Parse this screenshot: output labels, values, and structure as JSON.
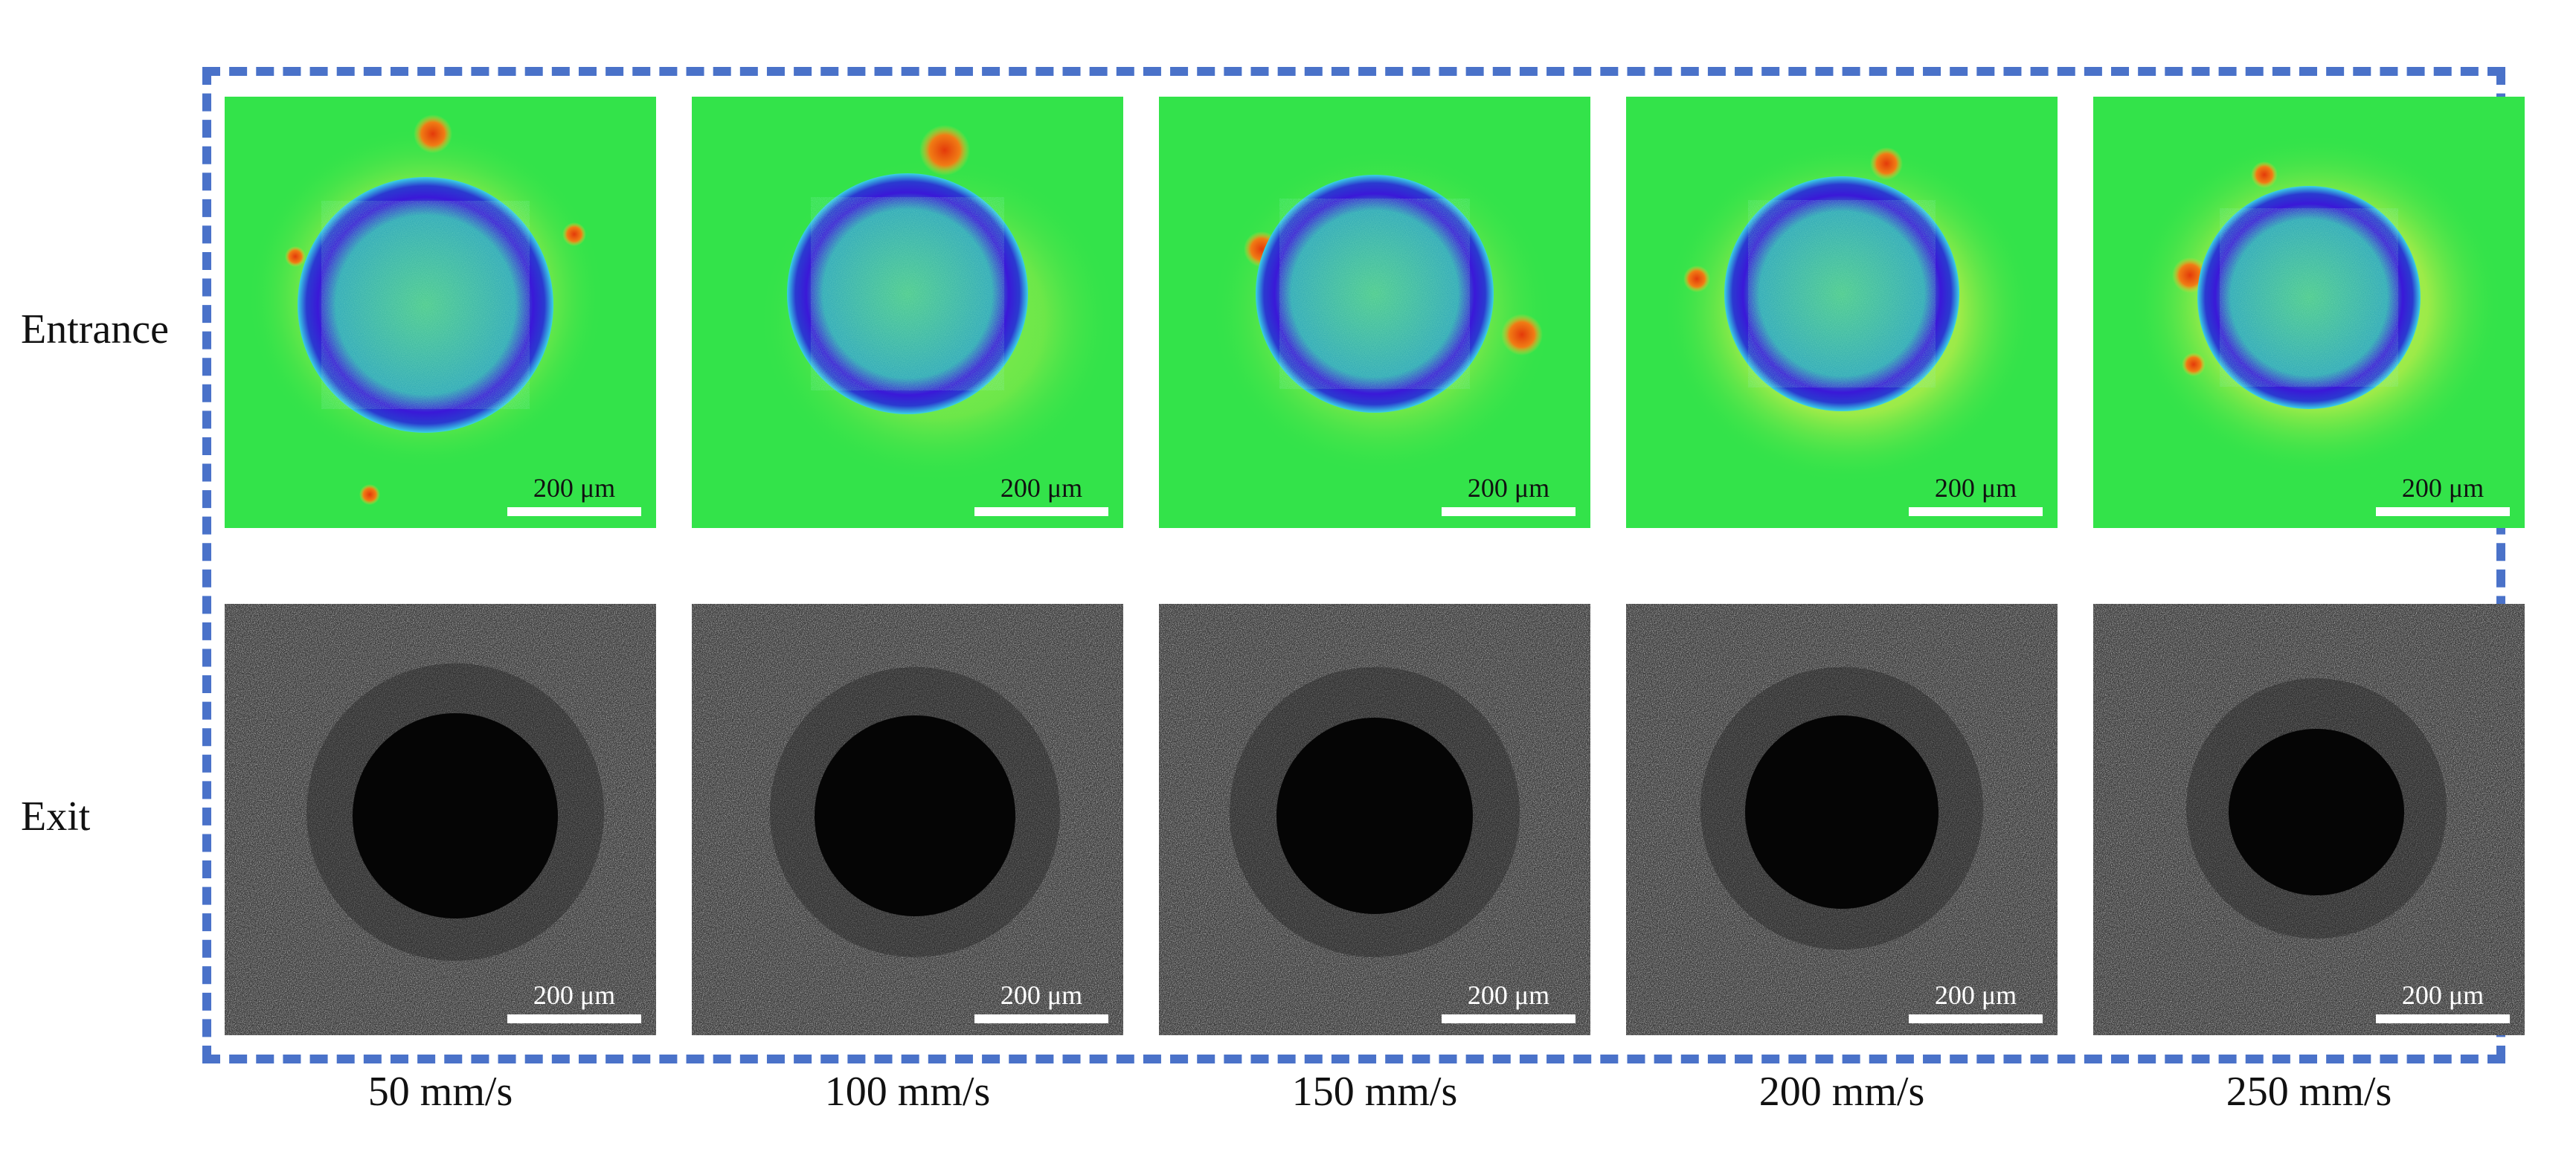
{
  "rows": {
    "entrance": "Entrance",
    "exit": "Exit"
  },
  "scale_label": "200 μm",
  "speeds": [
    "50 mm/s",
    "100 mm/s",
    "150 mm/s",
    "200 mm/s",
    "250 mm/s"
  ],
  "colors": {
    "frame": "#4a72c9",
    "map_background": "#33e34a",
    "hole_rim": "#3a18d8",
    "hole_center": "#2fb6a4",
    "debris": "#e65a10",
    "sem_background": "#3a3a3a"
  }
}
